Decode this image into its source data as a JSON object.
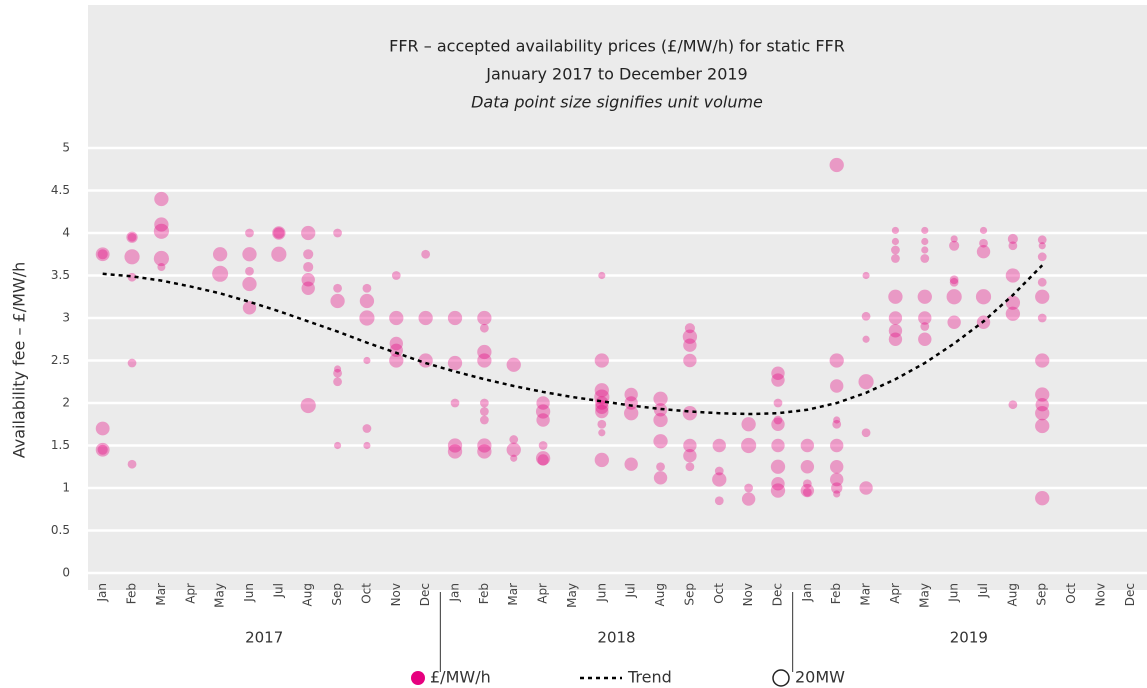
{
  "chart_data": {
    "type": "bubble",
    "title": "FFR – accepted availability prices (£/MW/h) for static FFR",
    "subtitle": "January 2017 to December 2019",
    "note": "Data point size signifies unit volume",
    "y_label": "Availability fee – £/MW/h",
    "categories": [
      "Jan",
      "Feb",
      "Mar",
      "Apr",
      "May",
      "Jun",
      "Jul",
      "Aug",
      "Sep",
      "Oct",
      "Nov",
      "Dec",
      "Jan",
      "Feb",
      "Mar",
      "Apr",
      "May",
      "Jun",
      "Jul",
      "Aug",
      "Sep",
      "Oct",
      "Nov",
      "Dec",
      "Jan",
      "Feb",
      "Mar",
      "Apr",
      "May",
      "Jun",
      "Jul",
      "Aug",
      "Sep",
      "Oct",
      "Nov",
      "Dec"
    ],
    "years": [
      "2017",
      "2018",
      "2019"
    ],
    "ylim": [
      0,
      5
    ],
    "yticks": [
      0,
      0.5,
      1,
      1.5,
      2,
      2.5,
      3,
      3.5,
      4,
      4.5,
      5
    ],
    "grid": true,
    "size_legend": {
      "label": "20MW",
      "value": 20
    },
    "series": [
      {
        "name": "£/MW/h",
        "color": "#e6007e",
        "points": [
          [
            [
              3.75,
              15
            ],
            [
              1.7,
              15
            ],
            [
              1.45,
              15
            ],
            [
              3.75,
              8
            ],
            [
              1.45,
              8
            ]
          ],
          [
            [
              3.72,
              18
            ],
            [
              3.95,
              10
            ],
            [
              3.48,
              6
            ],
            [
              2.47,
              6
            ],
            [
              1.28,
              6
            ],
            [
              3.95,
              6
            ]
          ],
          [
            [
              4.4,
              16
            ],
            [
              4.1,
              16
            ],
            [
              4.02,
              18
            ],
            [
              3.7,
              18
            ],
            [
              3.6,
              5
            ]
          ],
          [],
          [
            [
              3.52,
              20
            ],
            [
              3.75,
              16
            ]
          ],
          [
            [
              3.75,
              16
            ],
            [
              3.4,
              16
            ],
            [
              3.12,
              14
            ],
            [
              3.55,
              6
            ],
            [
              4.0,
              6
            ]
          ],
          [
            [
              3.75,
              18
            ],
            [
              4.0,
              10
            ],
            [
              4.0,
              14
            ]
          ],
          [
            [
              4.0,
              16
            ],
            [
              3.75,
              8
            ],
            [
              3.6,
              8
            ],
            [
              3.45,
              14
            ],
            [
              3.35,
              14
            ],
            [
              1.97,
              18
            ]
          ],
          [
            [
              4.0,
              6
            ],
            [
              3.35,
              6
            ],
            [
              3.2,
              16
            ],
            [
              2.35,
              6
            ],
            [
              2.25,
              6
            ],
            [
              2.4,
              4
            ],
            [
              1.5,
              4
            ]
          ],
          [
            [
              3.35,
              6
            ],
            [
              3.2,
              16
            ],
            [
              3.0,
              18
            ],
            [
              2.5,
              4
            ],
            [
              1.7,
              6
            ],
            [
              1.5,
              4
            ]
          ],
          [
            [
              3.5,
              6
            ],
            [
              3.0,
              16
            ],
            [
              2.7,
              14
            ],
            [
              2.62,
              14
            ],
            [
              2.5,
              16
            ]
          ],
          [
            [
              3.75,
              6
            ],
            [
              3.0,
              16
            ],
            [
              2.5,
              16
            ]
          ],
          [
            [
              3.0,
              16
            ],
            [
              2.47,
              16
            ],
            [
              2.0,
              6
            ],
            [
              1.5,
              16
            ],
            [
              1.43,
              16
            ]
          ],
          [
            [
              3.0,
              16
            ],
            [
              2.88,
              6
            ],
            [
              2.6,
              16
            ],
            [
              2.5,
              16
            ],
            [
              2.0,
              6
            ],
            [
              1.9,
              6
            ],
            [
              1.8,
              6
            ],
            [
              1.5,
              16
            ],
            [
              1.43,
              16
            ]
          ],
          [
            [
              2.45,
              16
            ],
            [
              1.57,
              6
            ],
            [
              1.45,
              16
            ],
            [
              1.35,
              4
            ]
          ],
          [
            [
              2.0,
              14
            ],
            [
              1.9,
              16
            ],
            [
              1.8,
              14
            ],
            [
              1.5,
              6
            ],
            [
              1.35,
              16
            ],
            [
              1.33,
              10
            ]
          ],
          [],
          [
            [
              3.5,
              4
            ],
            [
              2.5,
              16
            ],
            [
              2.15,
              16
            ],
            [
              2.07,
              18
            ],
            [
              2.0,
              14
            ],
            [
              1.95,
              14
            ],
            [
              1.9,
              14
            ],
            [
              1.75,
              6
            ],
            [
              1.65,
              4
            ],
            [
              1.33,
              16
            ]
          ],
          [
            [
              2.1,
              14
            ],
            [
              2.0,
              14
            ],
            [
              1.88,
              16
            ],
            [
              1.28,
              14
            ]
          ],
          [
            [
              2.05,
              16
            ],
            [
              1.92,
              14
            ],
            [
              1.8,
              16
            ],
            [
              1.55,
              16
            ],
            [
              1.25,
              6
            ],
            [
              1.12,
              14
            ]
          ],
          [
            [
              2.88,
              8
            ],
            [
              2.78,
              16
            ],
            [
              2.68,
              14
            ],
            [
              2.5,
              14
            ],
            [
              1.88,
              16
            ],
            [
              1.5,
              14
            ],
            [
              1.38,
              14
            ],
            [
              1.25,
              6
            ]
          ],
          [
            [
              1.5,
              14
            ],
            [
              1.2,
              6
            ],
            [
              1.1,
              16
            ],
            [
              0.85,
              6
            ]
          ],
          [
            [
              1.75,
              16
            ],
            [
              1.5,
              18
            ],
            [
              1.0,
              6
            ],
            [
              0.87,
              14
            ]
          ],
          [
            [
              2.35,
              14
            ],
            [
              2.27,
              14
            ],
            [
              2.0,
              6
            ],
            [
              1.8,
              6
            ],
            [
              1.75,
              14
            ],
            [
              1.5,
              14
            ],
            [
              1.25,
              16
            ],
            [
              1.05,
              14
            ],
            [
              0.97,
              16
            ]
          ],
          [
            [
              1.5,
              14
            ],
            [
              1.25,
              14
            ],
            [
              1.05,
              6
            ],
            [
              0.97,
              14
            ],
            [
              0.95,
              6
            ]
          ],
          [
            [
              4.8,
              16
            ],
            [
              2.5,
              16
            ],
            [
              2.2,
              14
            ],
            [
              1.8,
              4
            ],
            [
              1.75,
              6
            ],
            [
              1.5,
              14
            ],
            [
              1.25,
              14
            ],
            [
              1.1,
              14
            ],
            [
              1.0,
              10
            ],
            [
              0.93,
              4
            ]
          ],
          [
            [
              3.5,
              4
            ],
            [
              3.02,
              6
            ],
            [
              2.75,
              4
            ],
            [
              2.25,
              18
            ],
            [
              1.65,
              6
            ],
            [
              1.0,
              14
            ]
          ],
          [
            [
              4.03,
              4
            ],
            [
              3.9,
              4
            ],
            [
              3.8,
              6
            ],
            [
              3.7,
              6
            ],
            [
              3.25,
              16
            ],
            [
              3.0,
              14
            ],
            [
              2.85,
              14
            ],
            [
              2.75,
              14
            ]
          ],
          [
            [
              4.03,
              4
            ],
            [
              3.9,
              4
            ],
            [
              3.8,
              4
            ],
            [
              3.7,
              6
            ],
            [
              3.25,
              16
            ],
            [
              3.0,
              14
            ],
            [
              2.9,
              6
            ],
            [
              2.75,
              14
            ]
          ],
          [
            [
              3.93,
              4
            ],
            [
              3.85,
              8
            ],
            [
              3.45,
              6
            ],
            [
              3.42,
              6
            ],
            [
              3.25,
              18
            ],
            [
              2.95,
              14
            ]
          ],
          [
            [
              4.03,
              4
            ],
            [
              3.88,
              6
            ],
            [
              3.78,
              14
            ],
            [
              3.25,
              18
            ],
            [
              2.95,
              14
            ]
          ],
          [
            [
              3.93,
              8
            ],
            [
              3.85,
              6
            ],
            [
              3.5,
              16
            ],
            [
              3.18,
              16
            ],
            [
              3.05,
              16
            ],
            [
              1.98,
              6
            ]
          ],
          [
            [
              3.92,
              6
            ],
            [
              3.85,
              4
            ],
            [
              3.72,
              6
            ],
            [
              3.42,
              6
            ],
            [
              3.25,
              16
            ],
            [
              3.0,
              6
            ],
            [
              2.5,
              16
            ],
            [
              2.1,
              16
            ],
            [
              1.98,
              14
            ],
            [
              1.88,
              16
            ],
            [
              1.73,
              16
            ],
            [
              0.88,
              16
            ]
          ],
          [],
          [],
          []
        ]
      },
      {
        "name": "Trend",
        "color": "#000000",
        "values": [
          3.52,
          3.49,
          3.44,
          3.37,
          3.29,
          3.19,
          3.08,
          2.96,
          2.84,
          2.71,
          2.59,
          2.47,
          2.37,
          2.28,
          2.2,
          2.13,
          2.07,
          2.02,
          1.97,
          1.93,
          1.9,
          1.88,
          1.87,
          1.88,
          1.92,
          2.0,
          2.12,
          2.28,
          2.47,
          2.7,
          2.96,
          3.27,
          3.62,
          null,
          null,
          null
        ]
      }
    ]
  }
}
